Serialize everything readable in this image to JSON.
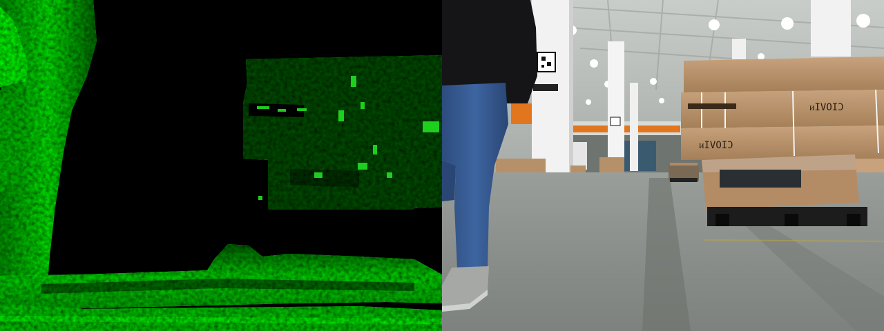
{
  "panes": {
    "depth": {
      "colormap": "green",
      "background": "#000000"
    },
    "camera": {
      "scene": "warehouse-aisle"
    }
  },
  "printed": {
    "box_brand_upper": "ᴎIVOIƆ",
    "box_brand_lower": "ᴎIVOIƆ"
  },
  "colors": {
    "depth_near": "#18ff18",
    "depth_far": "#0d3d0d",
    "floor": "#8a8f8a",
    "carton": "#b69068",
    "column": "#f2f2f2",
    "jeans": "#35588d",
    "jacket": "#151518",
    "mezzanine_rail": "#e2761f"
  }
}
